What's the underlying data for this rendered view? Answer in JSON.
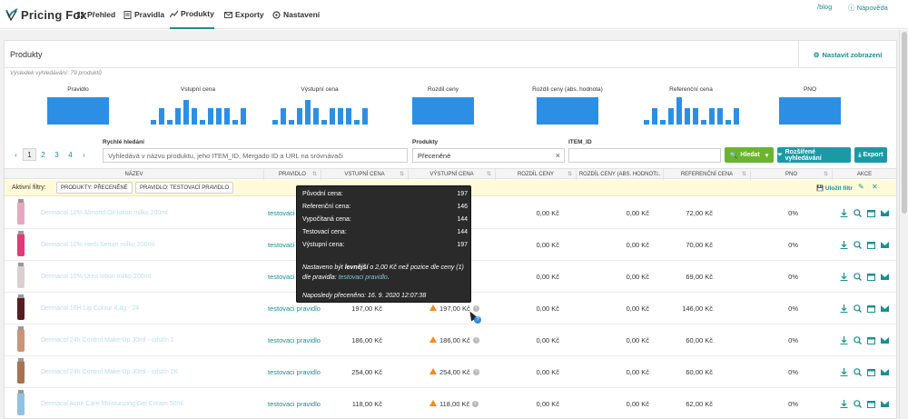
{
  "app": {
    "name": "Pricing Fox"
  },
  "nav": {
    "items": [
      {
        "label": "Přehled",
        "icon": "home-icon"
      },
      {
        "label": "Pravidla",
        "icon": "document-icon"
      },
      {
        "label": "Produkty",
        "icon": "chart-icon",
        "active": true
      },
      {
        "label": "Exporty",
        "icon": "envelope-icon"
      },
      {
        "label": "Nastavení",
        "icon": "gear-icon"
      }
    ],
    "blog": "/blog",
    "help": "Nápověda"
  },
  "panel": {
    "title": "Produkty",
    "settings_label": "Nastavit zobrazení",
    "results": "Výsledek vyhledávání: 79 produktů"
  },
  "histograms": [
    {
      "label": "Pravidlo",
      "values": [
        1
      ]
    },
    {
      "label": "Vstupní cena",
      "values": [
        0.15,
        0.6,
        0.15,
        0.6,
        0.9,
        0.6,
        0.15,
        0.6,
        0.6,
        0.6,
        0.15,
        0.6
      ]
    },
    {
      "label": "Výstupní cena",
      "values": [
        0.15,
        0.6,
        0.15,
        0.6,
        0.9,
        0.6,
        0.15,
        0.6,
        0.6,
        0.6,
        0.15,
        0.6
      ]
    },
    {
      "label": "Rozdíl ceny",
      "values": [
        1
      ]
    },
    {
      "label": "Rozdíl ceny (abs. hodnota)",
      "values": [
        1
      ]
    },
    {
      "label": "Referenční cena",
      "values": [
        0.15,
        0.6,
        0.15,
        0.6,
        1,
        0.6,
        0.6,
        0.15,
        0.6,
        0.6,
        0.15,
        0.6
      ]
    },
    {
      "label": "PNO",
      "values": [
        1
      ]
    }
  ],
  "pagination": {
    "pages": [
      "1",
      "2",
      "3",
      "4"
    ],
    "current": "1",
    "prev": "‹",
    "next": "›"
  },
  "filters": {
    "quick_label": "Rychlé hledání",
    "quick_placeholder": "Vyhledává v názvu produktu, jeho ITEM_ID, Mergado ID a URL na srovnávači",
    "product_label": "Produkty",
    "product_value": "Přeceněné",
    "item_label": "ITEM_ID",
    "item_value": "",
    "search_button": "Hledat",
    "advanced_button": "Rozšířené vyhledávání",
    "export_button": "Export"
  },
  "table": {
    "headers": [
      "NÁZEV",
      "PRAVIDLO",
      "VSTUPNÍ CENA",
      "VÝSTUPNÍ CENA",
      "ROZDÍL CENY",
      "ROZDÍL CENY (ABS. HODNOT...",
      "REFERENČNÍ CENA",
      "PNO",
      "AKCE"
    ],
    "active_filters_label": "Aktivní filtry:",
    "chips": [
      "PRODUKTY: PŘECENĚNÉ",
      "PRAVIDLO: TESTOVACÍ PRAVIDLO"
    ],
    "save_filter": "Uložit filtr",
    "rows": [
      {
        "name": "Dermacol 10% Almond Oil lotion milko 200ml",
        "rule": "testovaci pravidlo",
        "input": "",
        "output": "",
        "diff": "0,00 Kč",
        "diff_abs": "0,00 Kč",
        "ref": "72,00 Kč",
        "pno": "0%",
        "warn": false,
        "thumb": "#e7a7c2"
      },
      {
        "name": "Dermacol 10% Herb Serum milko 200ml",
        "rule": "testovaci pravidlo",
        "input": "",
        "output": "",
        "diff": "0,00 Kč",
        "diff_abs": "0,00 Kč",
        "ref": "70,00 Kč",
        "pno": "0%",
        "warn": false,
        "thumb": "#e23a77"
      },
      {
        "name": "Dermacol 10% Urea lotion milko 200ml",
        "rule": "testovaci pravidlo",
        "input": "",
        "output": "",
        "diff": "0,00 Kč",
        "diff_abs": "0,00 Kč",
        "ref": "69,00 Kč",
        "pno": "0%",
        "warn": false,
        "thumb": "#d9d1d1"
      },
      {
        "name": "Dermacol 16H Lip Colour 4,8g - 24",
        "rule": "testovaci pravidlo",
        "input": "197,00 Kč",
        "output": "197,00 Kč",
        "diff": "0,00 Kč",
        "diff_abs": "0,00 Kč",
        "ref": "146,00 Kč",
        "pno": "0%",
        "warn": true,
        "thumb": "#5a1c22"
      },
      {
        "name": "Dermacol 24h Control Make-Up 30ml - odstín 1",
        "rule": "testovaci pravidlo",
        "input": "186,00 Kč",
        "output": "186,00 Kč",
        "diff": "0,00 Kč",
        "diff_abs": "0,00 Kč",
        "ref": "60,00 Kč",
        "pno": "0%",
        "warn": true,
        "thumb": "#c99478"
      },
      {
        "name": "Dermacol 24h Control Make-Up 30ml - odstín 2K",
        "rule": "testovaci pravidlo",
        "input": "254,00 Kč",
        "output": "254,00 Kč",
        "diff": "0,00 Kč",
        "diff_abs": "0,00 Kč",
        "ref": "60,00 Kč",
        "pno": "0%",
        "warn": true,
        "thumb": "#a8734f"
      },
      {
        "name": "Dermacol Acne Care Moisturizing Gel Cream 50ml",
        "rule": "testovaci pravidlo",
        "input": "118,00 Kč",
        "output": "118,00 Kč",
        "diff": "0,00 Kč",
        "diff_abs": "0,00 Kč",
        "ref": "62,00 Kč",
        "pno": "0%",
        "warn": true,
        "thumb": "#8fc3e6"
      }
    ]
  },
  "tooltip": {
    "rows": [
      {
        "k": "Původní cena:",
        "v": "197"
      },
      {
        "k": "Referenční cena:",
        "v": "146"
      },
      {
        "k": "Vypočítaná cena:",
        "v": "144"
      },
      {
        "k": "Testovací cena:",
        "v": "144"
      },
      {
        "k": "Výstupní cena:",
        "v": "197"
      }
    ],
    "note_pre": "Nastaveno být ",
    "note_bold": "levnější",
    "note_post": " o 2,00 Kč než pozice dle ceny (1) dle pravidla: ",
    "note_link": "testovaci pravidlo",
    "note_end": ".",
    "last": "Naposledy přeceněno: 16. 9. 2020 12:07:38"
  },
  "colors": {
    "accent": "#1b8f8f",
    "bar": "#2d8fe3",
    "green": "#6ab42f",
    "teal": "#1b9aa6",
    "warning": "#f08a24"
  }
}
